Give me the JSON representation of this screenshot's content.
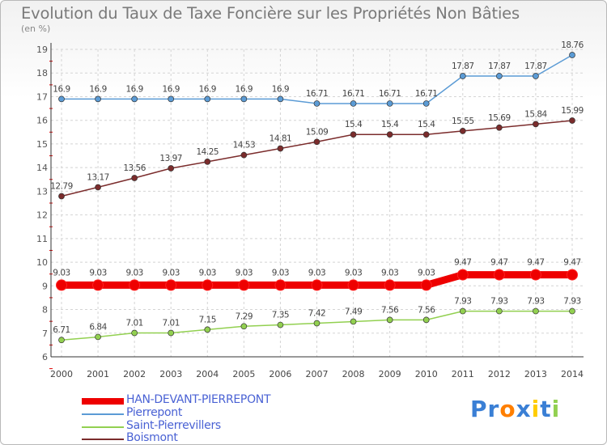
{
  "title": "Evolution du Taux de Taxe Foncière sur les Propriétés Non Bâties",
  "unit_label": "(en %)",
  "chart_data": {
    "type": "line",
    "title": "Evolution du Taux de Taxe Foncière sur les Propriétés Non Bâties",
    "ylabel": "(en %)",
    "xlabel": "",
    "x": [
      "2000",
      "2001",
      "2002",
      "2003",
      "2004",
      "2005",
      "2006",
      "2007",
      "2008",
      "2009",
      "2010",
      "2011",
      "2012",
      "2013",
      "2014"
    ],
    "ylim": [
      6,
      19
    ],
    "yticks": [
      6,
      7,
      8,
      9,
      10,
      11,
      12,
      13,
      14,
      15,
      16,
      17,
      18,
      19
    ],
    "grid": true,
    "series": [
      {
        "name": "HAN-DEVANT-PIERREPONT",
        "color": "#ee0000",
        "values": [
          9.03,
          9.03,
          9.03,
          9.03,
          9.03,
          9.03,
          9.03,
          9.03,
          9.03,
          9.03,
          9.03,
          9.47,
          9.47,
          9.47,
          9.47
        ],
        "labels": [
          "9.03",
          "9.03",
          "9.03",
          "9.03",
          "9.03",
          "9.03",
          "9.03",
          "9.03",
          "9.03",
          "9.03",
          "9.03",
          "9.47",
          "9.47",
          "9.47",
          "9.47"
        ]
      },
      {
        "name": "Pierrepont",
        "color": "#5b9bd5",
        "values": [
          16.9,
          16.9,
          16.9,
          16.9,
          16.9,
          16.9,
          16.9,
          16.71,
          16.71,
          16.71,
          16.71,
          17.87,
          17.87,
          17.87,
          18.76
        ],
        "labels": [
          "16.9",
          "16.9",
          "16.9",
          "16.9",
          "16.9",
          "16.9",
          "16.9",
          "16.71",
          "16.71",
          "16.71",
          "16.71",
          "17.87",
          "17.87",
          "17.87",
          "18.76"
        ]
      },
      {
        "name": "Saint-Pierrevillers",
        "color": "#92d050",
        "values": [
          6.71,
          6.84,
          7.01,
          7.01,
          7.15,
          7.29,
          7.35,
          7.42,
          7.49,
          7.56,
          7.56,
          7.93,
          7.93,
          7.93,
          7.93
        ],
        "labels": [
          "6.71",
          "6.84",
          "7.01",
          "7.01",
          "7.15",
          "7.29",
          "7.35",
          "7.42",
          "7.49",
          "7.56",
          "7.56",
          "7.93",
          "7.93",
          "7.93",
          "7.93"
        ]
      },
      {
        "name": "Boismont",
        "color": "#7b2c2c",
        "values": [
          12.79,
          13.17,
          13.56,
          13.97,
          14.25,
          14.53,
          14.81,
          15.09,
          15.4,
          15.4,
          15.4,
          15.55,
          15.69,
          15.84,
          15.99
        ],
        "labels": [
          "12.79",
          "13.17",
          "13.56",
          "13.97",
          "14.25",
          "14.53",
          "14.81",
          "15.09",
          "15.4",
          "15.4",
          "15.4",
          "15.55",
          "15.69",
          "15.84",
          "15.99"
        ]
      }
    ],
    "legend_position": "bottom-left"
  },
  "logo": {
    "text": "Proxiti",
    "letters": [
      "P",
      "r",
      "o",
      "x",
      "i",
      "t",
      "i"
    ],
    "colors": [
      "#3a7fd5",
      "#3a7fd5",
      "#ff7f00",
      "#3a7fd5",
      "#ffcc00",
      "#3a7fd5",
      "#92d050"
    ]
  }
}
